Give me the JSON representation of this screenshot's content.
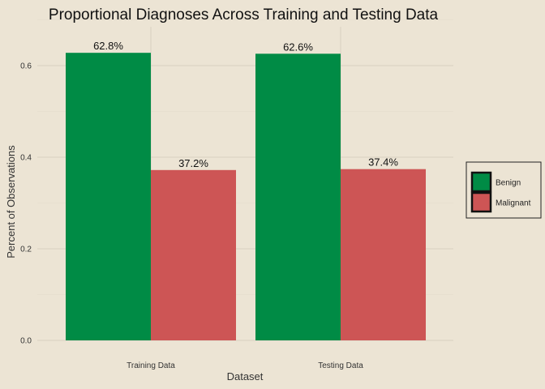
{
  "colors": {
    "background": "#ece4d4",
    "benign": "#008b45",
    "malignant": "#cd5555"
  },
  "chart_data": {
    "type": "bar",
    "title": "Proportional Diagnoses Across Training and Testing Data",
    "xlabel": "Dataset",
    "ylabel": "Percent of Observations",
    "categories": [
      "Training Data",
      "Testing Data"
    ],
    "series": [
      {
        "name": "Benign",
        "color": "#008b45",
        "values": [
          0.628,
          0.626
        ],
        "labels": [
          "62.8%",
          "62.6%"
        ]
      },
      {
        "name": "Malignant",
        "color": "#cd5555",
        "values": [
          0.372,
          0.374
        ],
        "labels": [
          "37.2%",
          "37.4%"
        ]
      }
    ],
    "yticks": [
      0.0,
      0.2,
      0.4,
      0.6
    ],
    "ytick_labels": [
      "0.0",
      "0.2",
      "0.4",
      "0.6"
    ],
    "ylim": [
      0,
      0.66
    ],
    "grid": true,
    "legend_position": "right"
  }
}
